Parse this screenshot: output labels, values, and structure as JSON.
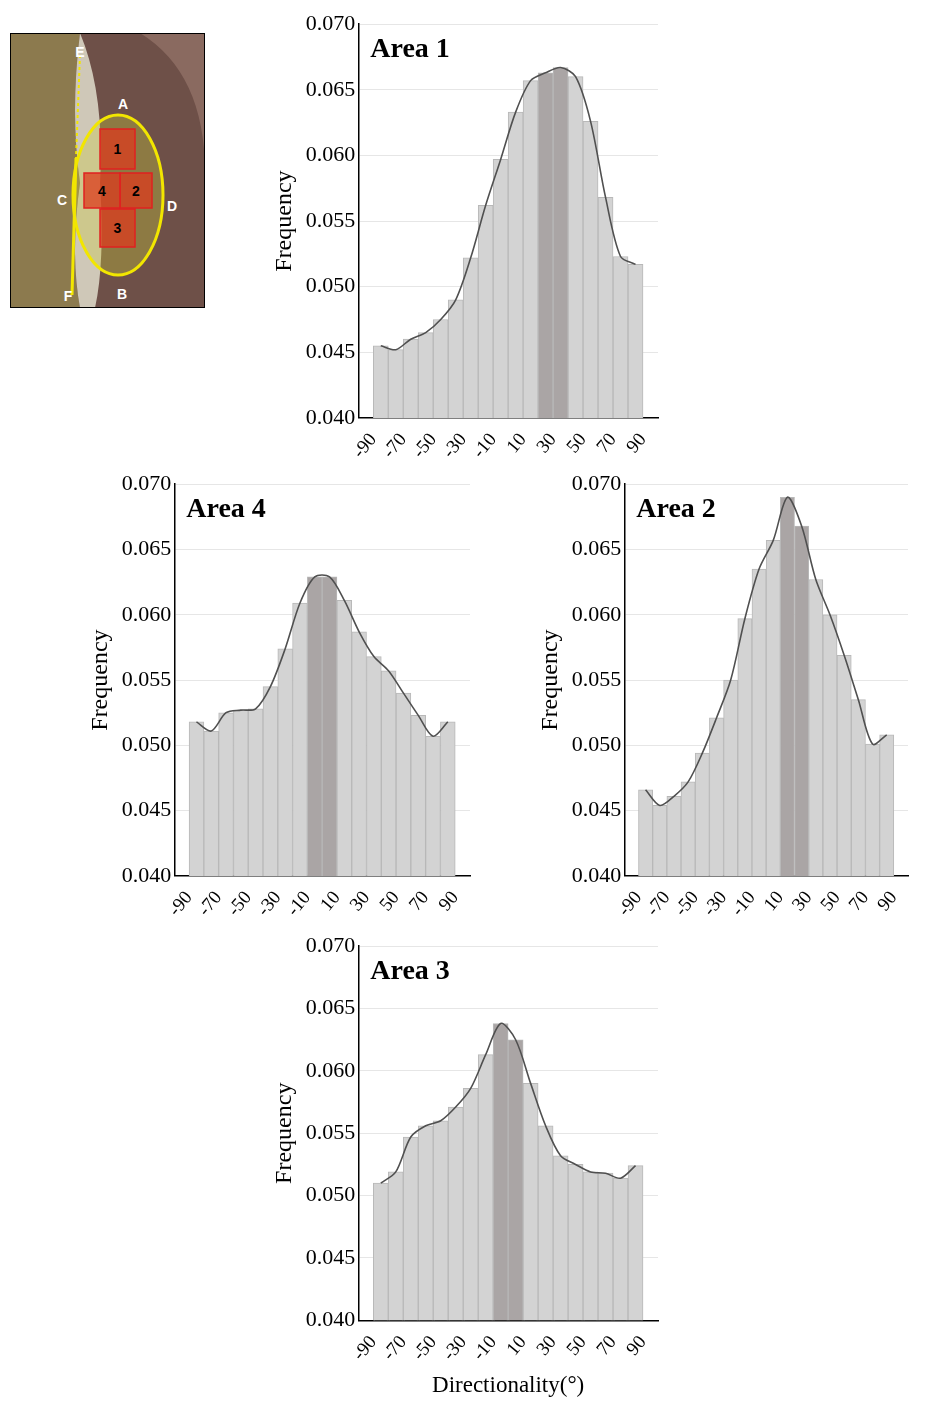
{
  "inset": {
    "letters": [
      "A",
      "B",
      "C",
      "D",
      "E",
      "F"
    ],
    "areas": [
      "1",
      "2",
      "3",
      "4"
    ]
  },
  "chart_data": [
    {
      "type": "bar",
      "title": "Area 1",
      "y_label": "Frequency",
      "bins": [
        -90,
        -80,
        -70,
        -60,
        -50,
        -40,
        -30,
        -20,
        -10,
        0,
        10,
        20,
        30,
        40,
        50,
        60,
        70,
        80,
        90
      ],
      "series": [
        {
          "type": "bar",
          "values": [
            0.0455,
            0.0452,
            0.046,
            0.0465,
            0.0475,
            0.049,
            0.0522,
            0.0562,
            0.0597,
            0.0633,
            0.0657,
            0.0663,
            0.0667,
            0.066,
            0.0626,
            0.0568,
            0.0523,
            0.0517
          ],
          "colors": [
            "#d3d3d3",
            "#d3d3d3",
            "#d3d3d3",
            "#d3d3d3",
            "#d3d3d3",
            "#d3d3d3",
            "#d3d3d3",
            "#d3d3d3",
            "#d3d3d3",
            "#d3d3d3",
            "#d3d3d3",
            "#aaa5a5",
            "#aaa5a5",
            "#d3d3d3",
            "#d3d3d3",
            "#d3d3d3",
            "#d3d3d3",
            "#d3d3d3"
          ]
        },
        {
          "type": "line",
          "color": "#505050",
          "line_style": "solid",
          "values": [
            0.0455,
            0.0452,
            0.046,
            0.0465,
            0.0475,
            0.049,
            0.0522,
            0.0562,
            0.0597,
            0.0633,
            0.0657,
            0.0663,
            0.0667,
            0.066,
            0.0626,
            0.0568,
            0.0523,
            0.0517
          ]
        }
      ],
      "xlim": [
        -90,
        90
      ],
      "xticks": [
        -90,
        -70,
        -50,
        -30,
        -10,
        10,
        30,
        50,
        70,
        90
      ],
      "ylim": [
        0.04,
        0.07
      ],
      "yticks": [
        {
          "value": 0.04,
          "label": "0.040"
        },
        {
          "value": 0.045,
          "label": "0.045"
        },
        {
          "value": 0.05,
          "label": "0.050"
        },
        {
          "value": 0.055,
          "label": "0.055"
        },
        {
          "value": 0.06,
          "label": "0.060"
        },
        {
          "value": 0.065,
          "label": "0.065"
        },
        {
          "value": 0.07,
          "label": "0.070"
        }
      ],
      "grid": true
    },
    {
      "type": "bar",
      "title": "Area 4",
      "y_label": "Frequency",
      "bins": [
        -90,
        -80,
        -70,
        -60,
        -50,
        -40,
        -30,
        -20,
        -10,
        0,
        10,
        20,
        30,
        40,
        50,
        60,
        70,
        80,
        90
      ],
      "series": [
        {
          "type": "bar",
          "values": [
            0.0518,
            0.0511,
            0.0525,
            0.0527,
            0.0528,
            0.0545,
            0.0574,
            0.0609,
            0.0629,
            0.0629,
            0.0611,
            0.0587,
            0.0568,
            0.0557,
            0.054,
            0.0523,
            0.0507,
            0.0518
          ],
          "colors": [
            "#d3d3d3",
            "#d3d3d3",
            "#d3d3d3",
            "#d3d3d3",
            "#d3d3d3",
            "#d3d3d3",
            "#d3d3d3",
            "#d3d3d3",
            "#aaa5a5",
            "#aaa5a5",
            "#d3d3d3",
            "#d3d3d3",
            "#d3d3d3",
            "#d3d3d3",
            "#d3d3d3",
            "#d3d3d3",
            "#d3d3d3",
            "#d3d3d3"
          ]
        },
        {
          "type": "line",
          "color": "#505050",
          "line_style": "solid",
          "values": [
            0.0518,
            0.0511,
            0.0525,
            0.0527,
            0.0528,
            0.0545,
            0.0574,
            0.0609,
            0.0629,
            0.0629,
            0.0611,
            0.0587,
            0.0568,
            0.0557,
            0.054,
            0.0523,
            0.0507,
            0.0518
          ]
        }
      ],
      "xlim": [
        -90,
        90
      ],
      "xticks": [
        -90,
        -70,
        -50,
        -30,
        -10,
        10,
        30,
        50,
        70,
        90
      ],
      "ylim": [
        0.04,
        0.07
      ],
      "yticks": [
        {
          "value": 0.04,
          "label": "0.040"
        },
        {
          "value": 0.045,
          "label": "0.045"
        },
        {
          "value": 0.05,
          "label": "0.050"
        },
        {
          "value": 0.055,
          "label": "0.055"
        },
        {
          "value": 0.06,
          "label": "0.060"
        },
        {
          "value": 0.065,
          "label": "0.065"
        },
        {
          "value": 0.07,
          "label": "0.070"
        }
      ],
      "grid": true
    },
    {
      "type": "bar",
      "title": "Area 2",
      "y_label": "Frequency",
      "bins": [
        -90,
        -80,
        -70,
        -60,
        -50,
        -40,
        -30,
        -20,
        -10,
        0,
        10,
        20,
        30,
        40,
        50,
        60,
        70,
        80,
        90
      ],
      "series": [
        {
          "type": "bar",
          "values": [
            0.0466,
            0.0454,
            0.0461,
            0.0472,
            0.0494,
            0.0521,
            0.055,
            0.0597,
            0.0635,
            0.0657,
            0.069,
            0.0668,
            0.0627,
            0.06,
            0.0569,
            0.0535,
            0.0501,
            0.0508
          ],
          "colors": [
            "#d3d3d3",
            "#d3d3d3",
            "#d3d3d3",
            "#d3d3d3",
            "#d3d3d3",
            "#d3d3d3",
            "#d3d3d3",
            "#d3d3d3",
            "#d3d3d3",
            "#d3d3d3",
            "#aaa5a5",
            "#aaa5a5",
            "#d3d3d3",
            "#d3d3d3",
            "#d3d3d3",
            "#d3d3d3",
            "#d3d3d3",
            "#d3d3d3"
          ]
        },
        {
          "type": "line",
          "color": "#505050",
          "line_style": "solid",
          "values": [
            0.0466,
            0.0454,
            0.0461,
            0.0472,
            0.0494,
            0.0521,
            0.055,
            0.0597,
            0.0635,
            0.0657,
            0.069,
            0.0668,
            0.0627,
            0.06,
            0.0569,
            0.0535,
            0.0501,
            0.0508
          ]
        }
      ],
      "xlim": [
        -90,
        90
      ],
      "xticks": [
        -90,
        -70,
        -50,
        -30,
        -10,
        10,
        30,
        50,
        70,
        90
      ],
      "ylim": [
        0.04,
        0.07
      ],
      "yticks": [
        {
          "value": 0.04,
          "label": "0.040"
        },
        {
          "value": 0.045,
          "label": "0.045"
        },
        {
          "value": 0.05,
          "label": "0.050"
        },
        {
          "value": 0.055,
          "label": "0.055"
        },
        {
          "value": 0.06,
          "label": "0.060"
        },
        {
          "value": 0.065,
          "label": "0.065"
        },
        {
          "value": 0.07,
          "label": "0.070"
        }
      ],
      "grid": true
    },
    {
      "type": "bar",
      "title": "Area 3",
      "y_label": "Frequency",
      "x_label": "Directionality(°)",
      "bins": [
        -90,
        -80,
        -70,
        -60,
        -50,
        -40,
        -30,
        -20,
        -10,
        0,
        10,
        20,
        30,
        40,
        50,
        60,
        70,
        80,
        90
      ],
      "series": [
        {
          "type": "bar",
          "values": [
            0.051,
            0.0519,
            0.0547,
            0.0556,
            0.056,
            0.0571,
            0.0586,
            0.0613,
            0.0638,
            0.0625,
            0.059,
            0.0556,
            0.0532,
            0.0525,
            0.0519,
            0.0518,
            0.0514,
            0.0524
          ],
          "colors": [
            "#d3d3d3",
            "#d3d3d3",
            "#d3d3d3",
            "#d3d3d3",
            "#d3d3d3",
            "#d3d3d3",
            "#d3d3d3",
            "#d3d3d3",
            "#aaa5a5",
            "#aaa5a5",
            "#d3d3d3",
            "#d3d3d3",
            "#d3d3d3",
            "#d3d3d3",
            "#d3d3d3",
            "#d3d3d3",
            "#d3d3d3",
            "#d3d3d3"
          ]
        },
        {
          "type": "line",
          "color": "#505050",
          "line_style": "solid",
          "values": [
            0.051,
            0.0519,
            0.0547,
            0.0556,
            0.056,
            0.0571,
            0.0586,
            0.0613,
            0.0638,
            0.0625,
            0.059,
            0.0556,
            0.0532,
            0.0525,
            0.0519,
            0.0518,
            0.0514,
            0.0524
          ]
        }
      ],
      "xlim": [
        -90,
        90
      ],
      "xticks": [
        -90,
        -70,
        -50,
        -30,
        -10,
        10,
        30,
        50,
        70,
        90
      ],
      "ylim": [
        0.04,
        0.07
      ],
      "yticks": [
        {
          "value": 0.04,
          "label": "0.040"
        },
        {
          "value": 0.045,
          "label": "0.045"
        },
        {
          "value": 0.05,
          "label": "0.050"
        },
        {
          "value": 0.055,
          "label": "0.055"
        },
        {
          "value": 0.06,
          "label": "0.060"
        },
        {
          "value": 0.065,
          "label": "0.065"
        },
        {
          "value": 0.07,
          "label": "0.070"
        }
      ],
      "grid": true
    }
  ]
}
